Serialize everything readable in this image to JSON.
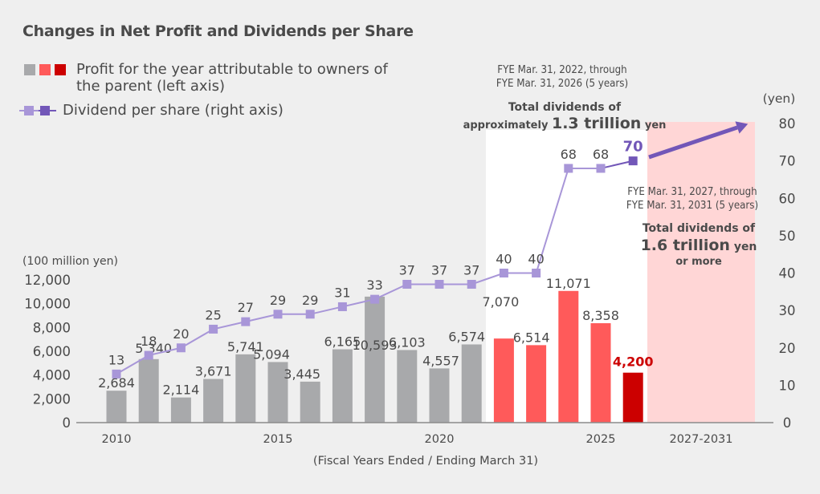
{
  "title": "Changes in Net Profit and Dividends per Share",
  "legend": {
    "profit_label_line1": "Profit for the year attributable to owners of",
    "profit_label_line2": "the parent (left axis)",
    "dividend_label": "Dividend per share (right axis)"
  },
  "annotations": {
    "period1_line1": "FYE Mar. 31, 2022, through",
    "period1_line2": "FYE Mar. 31, 2026 (5 years)",
    "period1_total_line1": "Total dividends of",
    "period1_total_prefix": "approximately",
    "period1_total_amount": "1.3 trillion",
    "period1_total_suffix": "yen",
    "period2_line1": "FYE Mar. 31, 2027, through",
    "period2_line2": "FYE Mar. 31, 2031 (5 years)",
    "period2_total_line1": "Total dividends of",
    "period2_total_amount": "1.6 trillion",
    "period2_total_suffix": "yen",
    "period2_total_line3": "or more"
  },
  "colors": {
    "bar_actual": "#a8a9ab",
    "bar_recent": "#ff5a5a",
    "bar_forecast": "#cc0000",
    "dividend_line": "#a896d8",
    "dividend_forecast": "#7257b8",
    "period1_panel": "#ffffff",
    "period2_panel": "#ffd6d6",
    "background": "#efefef"
  },
  "chart_data": {
    "type": "bar+line",
    "title": "Changes in Net Profit and Dividends per Share",
    "xlabel": "(Fiscal Years Ended / Ending March 31)",
    "ylabel_left": "(100 million yen)",
    "ylabel_right": "(yen)",
    "x": [
      2010,
      2011,
      2012,
      2013,
      2014,
      2015,
      2016,
      2017,
      2018,
      2019,
      2020,
      2021,
      2022,
      2023,
      2024,
      2025,
      2026
    ],
    "x_tick_labels": [
      "2010",
      "2015",
      "2020",
      "2025",
      "2027-2031"
    ],
    "ylim_left": [
      0,
      12000
    ],
    "yticks_left": [
      0,
      2000,
      4000,
      6000,
      8000,
      10000,
      12000
    ],
    "ytick_labels_left": [
      "0",
      "2,000",
      "4,000",
      "6,000",
      "8,000",
      "10,000",
      "12,000"
    ],
    "ylim_right": [
      0,
      80
    ],
    "yticks_right": [
      0,
      10,
      20,
      30,
      40,
      50,
      60,
      70,
      80
    ],
    "series": [
      {
        "name": "Profit for the year attributable to owners of the parent (left axis)",
        "type": "bar",
        "axis": "left",
        "values": [
          2684,
          5340,
          2114,
          3671,
          5741,
          5094,
          3445,
          6165,
          10593,
          6103,
          4557,
          6574,
          7070,
          6514,
          11071,
          8358,
          4200
        ],
        "labels": [
          "2,684",
          "5,340",
          "2,114",
          "3,671",
          "5,741",
          "5,094",
          "3,445",
          "6,165",
          "10,593",
          "6,103",
          "4,557",
          "6,574",
          "7,070",
          "6,514",
          "11,071",
          "8,358",
          "4,200"
        ],
        "kind": [
          "actual",
          "actual",
          "actual",
          "actual",
          "actual",
          "actual",
          "actual",
          "actual",
          "actual",
          "actual",
          "actual",
          "actual",
          "recent",
          "recent",
          "recent",
          "recent",
          "forecast"
        ]
      },
      {
        "name": "Dividend per share (right axis)",
        "type": "line",
        "axis": "right",
        "values": [
          13,
          18,
          20,
          25,
          27,
          29,
          29,
          31,
          33,
          37,
          37,
          37,
          40,
          40,
          68,
          68,
          70
        ],
        "labels": [
          "13",
          "18",
          "20",
          "25",
          "27",
          "29",
          "29",
          "31",
          "33",
          "37",
          "37",
          "37",
          "40",
          "40",
          "68",
          "68",
          "70"
        ],
        "forecast_index": 16
      }
    ],
    "trend_arrow": {
      "from_x": "2026",
      "to_x": "2027-2031",
      "to_value_right": 80,
      "meaning": "dividend increase trend"
    },
    "grid": false,
    "legend_position": "top-left"
  }
}
